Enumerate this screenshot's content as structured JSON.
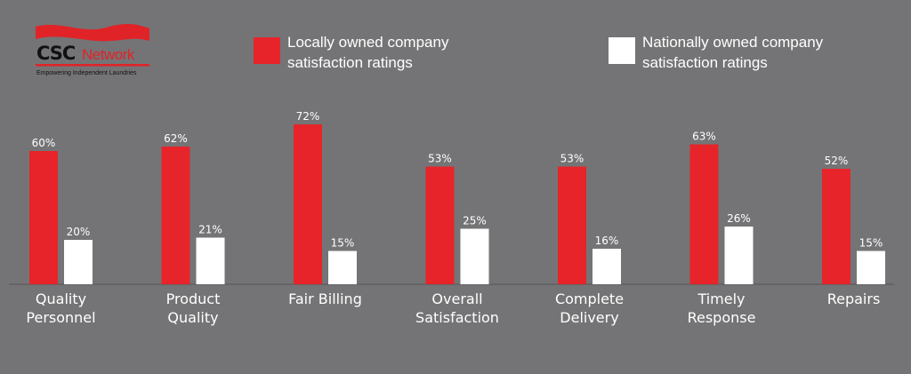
{
  "logo": {
    "brand": "CSC",
    "network": "Network",
    "tagline": "Empowering Independent Laundries"
  },
  "legend": [
    {
      "lines": [
        "Locally owned company",
        "satisfaction ratings"
      ],
      "color": "#e62429"
    },
    {
      "lines": [
        "Nationally owned company",
        "satisfaction ratings"
      ],
      "color": "#ffffff"
    }
  ],
  "chart_data": {
    "type": "bar",
    "categories": [
      [
        "Quality",
        "Personnel"
      ],
      [
        "Product",
        "Quality"
      ],
      [
        "Fair Billing"
      ],
      [
        "Overall",
        "Satisfaction"
      ],
      [
        "Complete",
        "Delivery"
      ],
      [
        "Timely",
        "Response"
      ],
      [
        "Repairs"
      ]
    ],
    "series": [
      {
        "name": "Locally owned company satisfaction ratings",
        "color": "#e62429",
        "values": [
          60,
          62,
          72,
          53,
          53,
          63,
          52
        ]
      },
      {
        "name": "Nationally owned company satisfaction ratings",
        "color": "#ffffff",
        "values": [
          20,
          21,
          15,
          25,
          16,
          26,
          15
        ]
      }
    ],
    "value_suffix": "%",
    "title": "",
    "xlabel": "",
    "ylabel": "",
    "ylim": [
      0,
      100
    ],
    "grid": false,
    "legend_position": "top"
  }
}
